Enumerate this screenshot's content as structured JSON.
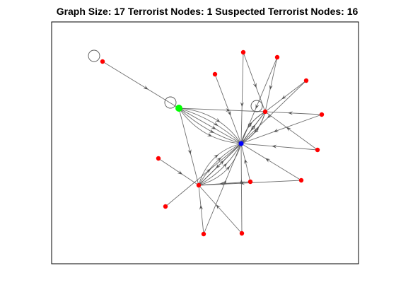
{
  "title": "Graph Size:  17 Terrorist Nodes:  1 Suspected Terrorist Nodes:  16",
  "colors": {
    "background": "#ffffff",
    "axes_border": "#000000",
    "edge": "#555555",
    "terrorist_node": "#00ff00",
    "hub_node": "#0000ff",
    "suspected_node": "#ff0000"
  },
  "graph": {
    "type": "directed-graph",
    "counts": {
      "graph_size": 17,
      "terrorist_nodes": 1,
      "suspected_terrorist_nodes": 16
    },
    "nodes": [
      {
        "id": "T",
        "role": "terrorist"
      },
      {
        "id": "H",
        "role": "hub"
      },
      {
        "id": "R1",
        "role": "suspected"
      },
      {
        "id": "R2",
        "role": "suspected"
      },
      {
        "id": "S1",
        "role": "suspected"
      },
      {
        "id": "S2",
        "role": "suspected"
      },
      {
        "id": "S3",
        "role": "suspected"
      },
      {
        "id": "S4",
        "role": "suspected"
      },
      {
        "id": "S5",
        "role": "suspected"
      },
      {
        "id": "S6",
        "role": "suspected"
      },
      {
        "id": "S7",
        "role": "suspected"
      },
      {
        "id": "S8",
        "role": "suspected"
      },
      {
        "id": "S9",
        "role": "suspected"
      },
      {
        "id": "S10",
        "role": "suspected"
      },
      {
        "id": "S11",
        "role": "suspected"
      },
      {
        "id": "S12",
        "role": "suspected"
      },
      {
        "id": "S13",
        "role": "suspected"
      }
    ],
    "edges": [
      {
        "from": "S1",
        "to": "T"
      },
      {
        "from": "S1",
        "to": "S1",
        "self": true
      },
      {
        "from": "T",
        "to": "T",
        "self": true
      },
      {
        "from": "R1",
        "to": "R1",
        "self": true
      },
      {
        "from": "T",
        "to": "H",
        "multi": 5
      },
      {
        "from": "T",
        "to": "R1"
      },
      {
        "from": "T",
        "to": "R2"
      },
      {
        "from": "S2",
        "to": "H"
      },
      {
        "from": "S3",
        "to": "R1"
      },
      {
        "from": "S3",
        "to": "H"
      },
      {
        "from": "S4",
        "to": "H"
      },
      {
        "from": "S4",
        "to": "R1"
      },
      {
        "from": "S5",
        "to": "H"
      },
      {
        "from": "S5",
        "to": "R1"
      },
      {
        "from": "S6",
        "to": "R1"
      },
      {
        "from": "S6",
        "to": "H"
      },
      {
        "from": "S7",
        "to": "R1"
      },
      {
        "from": "S7",
        "to": "H"
      },
      {
        "from": "S8",
        "to": "R2"
      },
      {
        "from": "S9",
        "to": "H"
      },
      {
        "from": "S10",
        "to": "R2"
      },
      {
        "from": "S10",
        "to": "H"
      },
      {
        "from": "S11",
        "to": "H"
      },
      {
        "from": "S12",
        "to": "H"
      },
      {
        "from": "S13",
        "to": "R2"
      },
      {
        "from": "S13",
        "to": "H"
      },
      {
        "from": "R1",
        "to": "H",
        "multi": 3
      },
      {
        "from": "H",
        "to": "R1",
        "multi": 3
      },
      {
        "from": "R2",
        "to": "H",
        "multi": 5
      },
      {
        "from": "H",
        "to": "R2"
      },
      {
        "from": "S12",
        "to": "R2"
      },
      {
        "from": "S9",
        "to": "R2"
      }
    ]
  }
}
